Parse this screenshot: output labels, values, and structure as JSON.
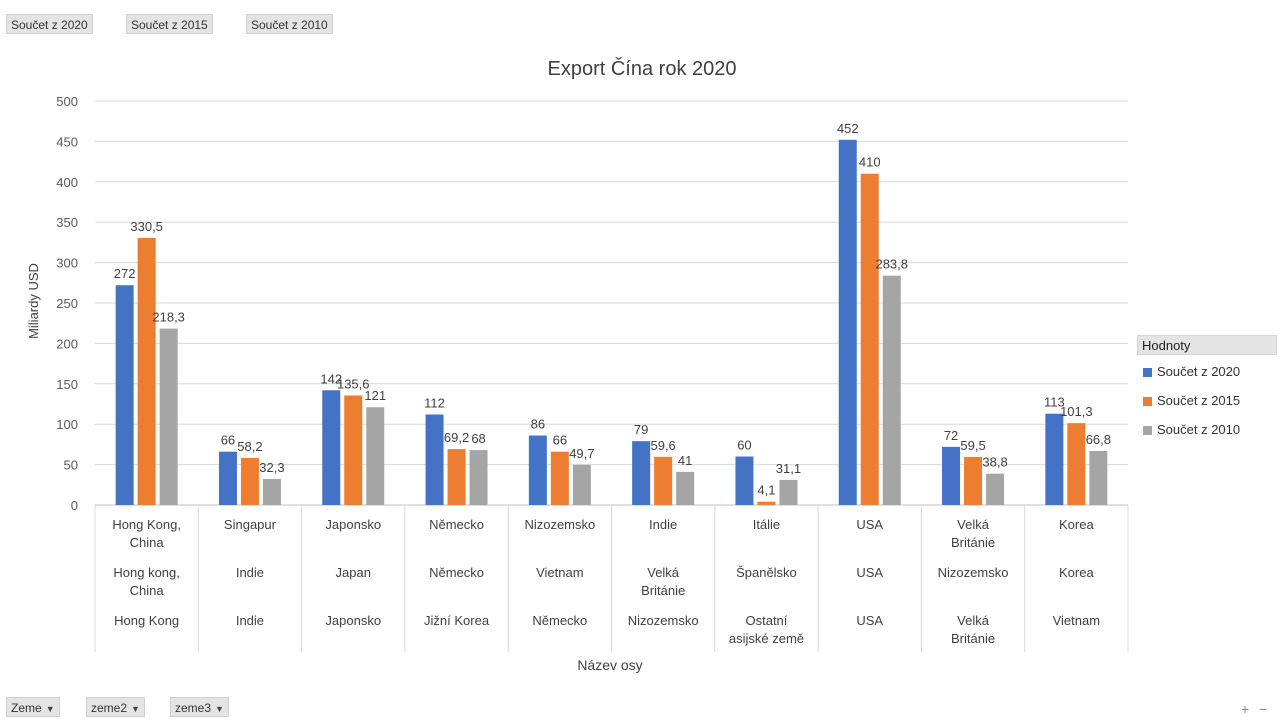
{
  "top_fields": [
    "Součet z 2020",
    "Součet z 2015",
    "Součet z 2010"
  ],
  "bottom_fields": [
    {
      "label": "Zeme",
      "icon": "dropdown-arrow-icon"
    },
    {
      "label": "zeme2",
      "icon": "dropdown-arrow-icon"
    },
    {
      "label": "zeme3",
      "icon": "dropdown-arrow-icon"
    }
  ],
  "zoom": {
    "plus": "+",
    "minus": "−"
  },
  "legend": {
    "title": "Hodnoty",
    "items": [
      "Součet z 2020",
      "Součet z 2015",
      "Součet z 2010"
    ]
  },
  "chart_data": {
    "type": "bar",
    "title": "Export Čína rok 2020",
    "xlabel": "Název osy",
    "ylabel": "Miliardy USD",
    "ylim": [
      0,
      500
    ],
    "yticks": [
      0,
      50,
      100,
      150,
      200,
      250,
      300,
      350,
      400,
      450,
      500
    ],
    "grid": true,
    "legend_position": "right",
    "category_levels": [
      [
        "Hong Kong, China",
        "Singapur",
        "Japonsko",
        "Německo",
        "Nizozemsko",
        "Indie",
        "Itálie",
        "USA",
        "Velká Británie",
        "Korea"
      ],
      [
        "Hong kong, China",
        "Indie",
        "Japan",
        "Německo",
        "Vietnam",
        "Velká Británie",
        "Španělsko",
        "USA",
        "Nizozemsko",
        "Korea"
      ],
      [
        "Hong Kong",
        "Indie",
        "Japonsko",
        "Jižní Korea",
        "Německo",
        "Nizozemsko",
        "Ostatní asijské země",
        "USA",
        "Velká Británie",
        "Vietnam"
      ]
    ],
    "series": [
      {
        "name": "Součet z 2020",
        "color": "#4472c4",
        "values": [
          272,
          66,
          142,
          112,
          86,
          79,
          60,
          452,
          72,
          113
        ],
        "labels": [
          "272",
          "66",
          "142",
          "112",
          "86",
          "79",
          "60",
          "452",
          "72",
          "113"
        ]
      },
      {
        "name": "Součet z 2015",
        "color": "#ed7d31",
        "values": [
          330.5,
          58.2,
          135.6,
          69.2,
          66,
          59.6,
          4.1,
          410,
          59.5,
          101.3
        ],
        "labels": [
          "330,5",
          "58,2",
          "135,6",
          "69,2",
          "66",
          "59,6",
          "4,1",
          "410",
          "59,5",
          "101,3"
        ]
      },
      {
        "name": "Součet z 2010",
        "color": "#a5a5a5",
        "values": [
          218.3,
          32.3,
          121,
          68,
          49.7,
          41,
          31.1,
          283.8,
          38.8,
          66.8
        ],
        "labels": [
          "218,3",
          "32,3",
          "121",
          "68",
          "49,7",
          "41",
          "31,1",
          "283,8",
          "38,8",
          "66,8"
        ]
      }
    ]
  }
}
